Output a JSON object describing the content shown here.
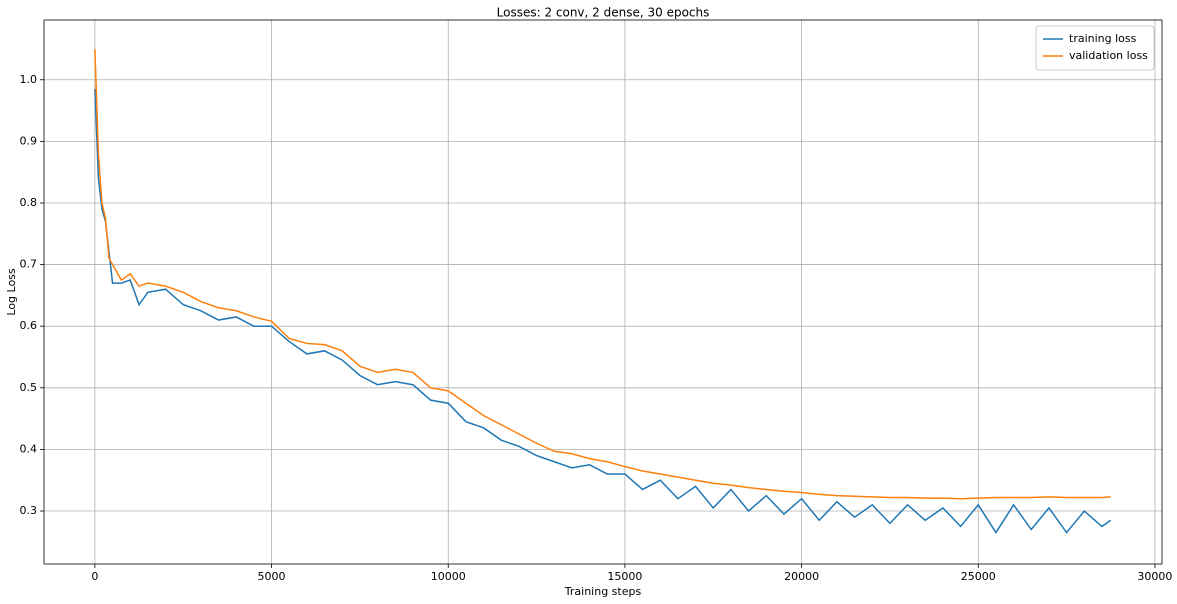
{
  "chart_data": {
    "type": "line",
    "title": "Losses: 2 conv, 2 dense, 30 epochs",
    "x_label": "Training steps",
    "y_label": "Log Loss",
    "x": [
      0,
      100,
      200,
      300,
      400,
      500,
      750,
      1000,
      1250,
      1500,
      2000,
      2500,
      3000,
      3500,
      4000,
      4500,
      5000,
      5500,
      6000,
      6500,
      7000,
      7500,
      8000,
      8500,
      9000,
      9500,
      10000,
      10500,
      11000,
      11500,
      12000,
      12500,
      13000,
      13500,
      14000,
      14500,
      15000,
      15500,
      16000,
      16500,
      17000,
      17500,
      18000,
      18500,
      19000,
      19500,
      20000,
      20500,
      21000,
      21500,
      22000,
      22500,
      23000,
      23500,
      24000,
      24500,
      25000,
      25500,
      26000,
      26500,
      27000,
      27500,
      28000,
      28500,
      28750
    ],
    "series": [
      {
        "name": "training loss",
        "color": "#1f77b4",
        "values": [
          0.985,
          0.84,
          0.79,
          0.77,
          0.72,
          0.67,
          0.67,
          0.675,
          0.635,
          0.655,
          0.66,
          0.635,
          0.625,
          0.61,
          0.615,
          0.6,
          0.6,
          0.575,
          0.555,
          0.56,
          0.545,
          0.52,
          0.505,
          0.51,
          0.505,
          0.48,
          0.475,
          0.445,
          0.435,
          0.415,
          0.405,
          0.39,
          0.38,
          0.37,
          0.375,
          0.36,
          0.36,
          0.335,
          0.35,
          0.32,
          0.34,
          0.305,
          0.335,
          0.3,
          0.325,
          0.295,
          0.32,
          0.285,
          0.315,
          0.29,
          0.31,
          0.28,
          0.31,
          0.285,
          0.305,
          0.275,
          0.31,
          0.265,
          0.31,
          0.27,
          0.305,
          0.265,
          0.3,
          0.275,
          0.285
        ]
      },
      {
        "name": "validation loss",
        "color": "#ff7f0e",
        "values": [
          1.05,
          0.88,
          0.8,
          0.775,
          0.71,
          0.7,
          0.675,
          0.685,
          0.665,
          0.67,
          0.665,
          0.655,
          0.64,
          0.63,
          0.625,
          0.615,
          0.608,
          0.58,
          0.572,
          0.57,
          0.56,
          0.535,
          0.525,
          0.53,
          0.525,
          0.5,
          0.495,
          0.475,
          0.455,
          0.44,
          0.425,
          0.41,
          0.397,
          0.393,
          0.385,
          0.38,
          0.372,
          0.365,
          0.36,
          0.355,
          0.35,
          0.345,
          0.342,
          0.338,
          0.335,
          0.332,
          0.33,
          0.327,
          0.325,
          0.324,
          0.323,
          0.322,
          0.322,
          0.321,
          0.321,
          0.32,
          0.321,
          0.322,
          0.322,
          0.322,
          0.323,
          0.322,
          0.322,
          0.322,
          0.323
        ]
      }
    ],
    "xlim": [
      -1440,
      30200
    ],
    "ylim": [
      0.214,
      1.097
    ],
    "xticks": [
      0,
      5000,
      10000,
      15000,
      20000,
      25000,
      30000
    ],
    "yticks": [
      0.3,
      0.4,
      0.5,
      0.6,
      0.7,
      0.8,
      0.9,
      {
        "value": 1,
        "label": "1.0"
      }
    ],
    "grid": true,
    "legend": "upper right"
  }
}
